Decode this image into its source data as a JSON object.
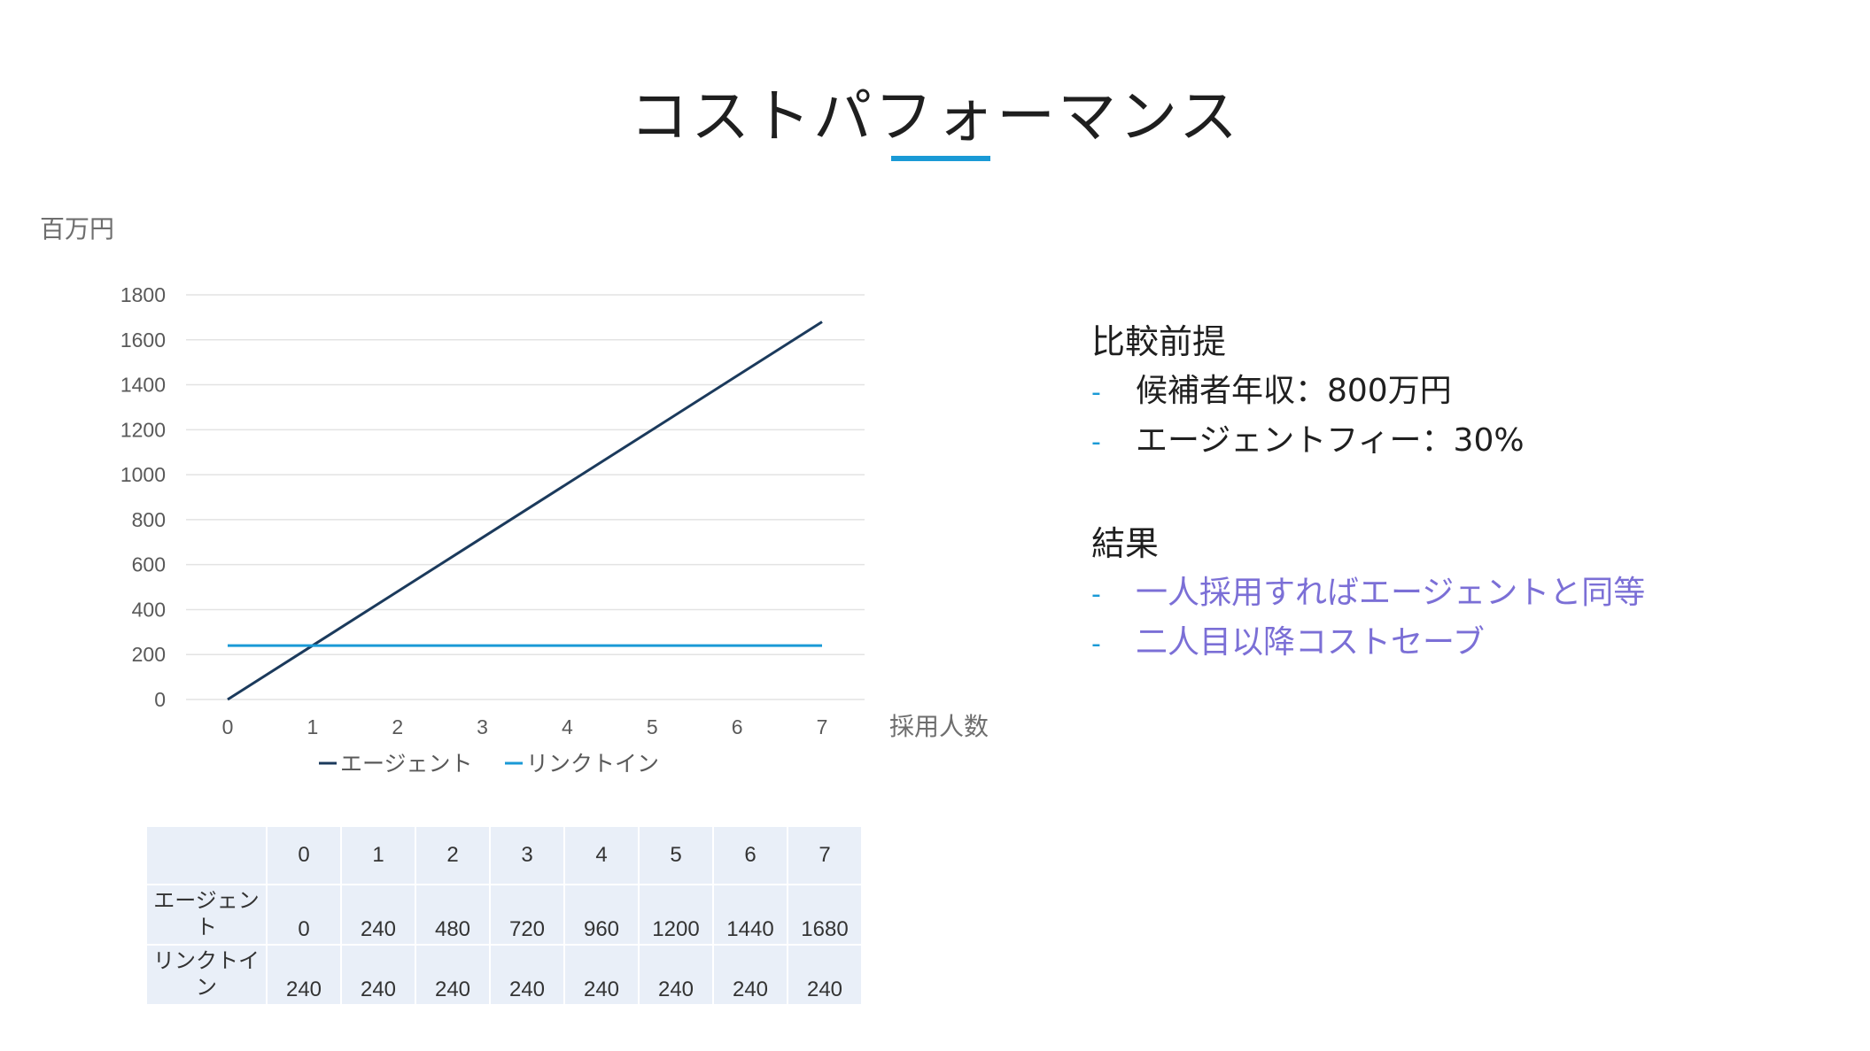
{
  "title": "コストパフォーマンス",
  "chart_data": {
    "type": "line",
    "ylabel": "百万円",
    "xlabel": "採用人数",
    "x": [
      0,
      1,
      2,
      3,
      4,
      5,
      6,
      7
    ],
    "ylim": [
      0,
      1800
    ],
    "yticks": [
      0,
      200,
      400,
      600,
      800,
      1000,
      1200,
      1400,
      1600,
      1800
    ],
    "grid": true,
    "legend_position": "bottom",
    "series": [
      {
        "name": "エージェント",
        "values": [
          0,
          240,
          480,
          720,
          960,
          1200,
          1440,
          1680
        ],
        "color": "#1b3a5c"
      },
      {
        "name": "リンクトイン",
        "values": [
          240,
          240,
          240,
          240,
          240,
          240,
          240,
          240
        ],
        "color": "#1a9ad6"
      }
    ]
  },
  "table": {
    "header": [
      "0",
      "1",
      "2",
      "3",
      "4",
      "5",
      "6",
      "7"
    ],
    "rows": [
      {
        "label_lines": [
          "エージェン",
          "ト"
        ],
        "values": [
          "0",
          "240",
          "480",
          "720",
          "960",
          "1200",
          "1440",
          "1680"
        ]
      },
      {
        "label_lines": [
          "リンクトイ",
          "ン"
        ],
        "values": [
          "240",
          "240",
          "240",
          "240",
          "240",
          "240",
          "240",
          "240"
        ]
      }
    ]
  },
  "notes": {
    "premise_heading": "比較前提",
    "premise_items": [
      "候補者年収：800万円",
      "エージェントフィー：30%"
    ],
    "result_heading": "結果",
    "result_items": [
      "一人採用すればエージェントと同等",
      "二人目以降コストセーブ"
    ],
    "bullet": "-"
  },
  "colors": {
    "accent": "#1a9ad6",
    "agent_line": "#1b3a5c",
    "result_text": "#7b6fd6",
    "table_bg": "#e9eff8"
  }
}
